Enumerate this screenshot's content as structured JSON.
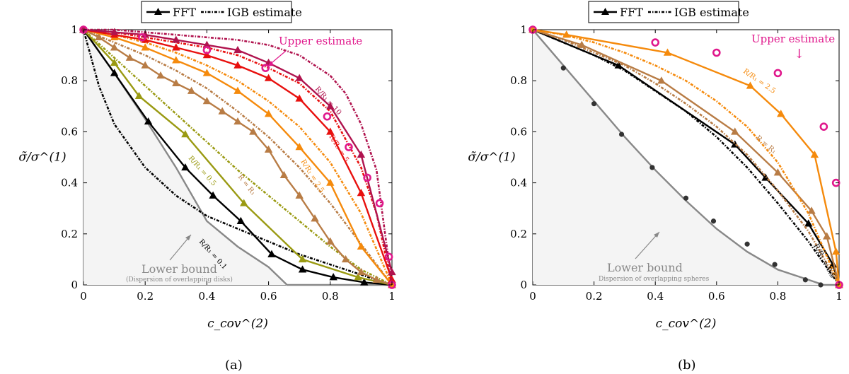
{
  "legend": {
    "fft": "FFT",
    "igb": "IGB estimate"
  },
  "colors": {
    "black": "#000000",
    "gray": "#888888",
    "olive": "#9a9a12",
    "tan": "#b87c45",
    "orange": "#f58a0c",
    "red": "#e8100e",
    "crimson": "#b0134e",
    "magenta": "#e0188c",
    "shade": "#f4f4f4"
  },
  "chart_data": [
    {
      "type": "line",
      "caption": "(a)",
      "xlabel": "c_cov^(2)",
      "ylabel": "σ̃/σ^(1)",
      "xlim": [
        0,
        1
      ],
      "ylim": [
        0,
        1
      ],
      "xticks": [
        0,
        0.2,
        0.4,
        0.6,
        0.8,
        1
      ],
      "yticks": [
        0,
        0.2,
        0.4,
        0.6,
        0.8,
        1
      ],
      "xtick_labels": [
        "0",
        "0.2",
        "0.4",
        "0.6",
        "0.8",
        "1"
      ],
      "ytick_labels": [
        "0",
        "0.2",
        "0.4",
        "0.6",
        "0.8",
        "1"
      ],
      "annotations": {
        "lower_bound": "Lower bound",
        "lower_bound_sub": "(Dispersion of overlapping disks)",
        "upper": "Upper estimate",
        "labels": [
          "R/R₁ = 0.1",
          "R/R₁ = 0.5",
          "R = R₁",
          "R/R₁ = 2.5",
          "R/R₁ = 5",
          "R/R₁ = 10"
        ]
      },
      "lower_bound": {
        "x": [
          0,
          0.1,
          0.2,
          0.3,
          0.4,
          0.5,
          0.6,
          0.66,
          0.8,
          1
        ],
        "y": [
          1,
          0.83,
          0.65,
          0.46,
          0.25,
          0.15,
          0.07,
          0.0,
          0.0,
          0.0
        ]
      },
      "series": [
        {
          "name": "R/R₁ = 0.1",
          "color": "black",
          "fft": {
            "x": [
              0,
              0.1,
              0.21,
              0.33,
              0.42,
              0.51,
              0.61,
              0.71,
              0.81,
              0.91,
              1
            ],
            "y": [
              1,
              0.83,
              0.64,
              0.46,
              0.35,
              0.25,
              0.12,
              0.06,
              0.03,
              0.01,
              0.0
            ]
          },
          "igb": {
            "x": [
              0,
              0.05,
              0.1,
              0.2,
              0.3,
              0.4,
              0.5,
              0.6,
              0.7,
              0.8,
              0.9,
              1
            ],
            "y": [
              1,
              0.78,
              0.63,
              0.46,
              0.35,
              0.27,
              0.22,
              0.17,
              0.12,
              0.08,
              0.04,
              0.0
            ]
          }
        },
        {
          "name": "R/R₁ = 0.5",
          "color": "olive",
          "fft": {
            "x": [
              0,
              0.1,
              0.18,
              0.33,
              0.52,
              0.71,
              0.89,
              1
            ],
            "y": [
              1,
              0.87,
              0.74,
              0.59,
              0.32,
              0.1,
              0.03,
              0.0
            ]
          },
          "igb": {
            "x": [
              0,
              0.1,
              0.2,
              0.3,
              0.4,
              0.5,
              0.6,
              0.7,
              0.8,
              0.9,
              1
            ],
            "y": [
              1,
              0.89,
              0.78,
              0.67,
              0.56,
              0.45,
              0.35,
              0.25,
              0.15,
              0.06,
              0.0
            ]
          }
        },
        {
          "name": "R = R₁",
          "color": "tan",
          "fft": {
            "x": [
              0,
              0.05,
              0.1,
              0.15,
              0.2,
              0.25,
              0.3,
              0.35,
              0.4,
              0.45,
              0.5,
              0.55,
              0.6,
              0.65,
              0.7,
              0.75,
              0.8,
              0.85,
              0.9,
              0.95,
              1
            ],
            "y": [
              1,
              0.97,
              0.93,
              0.89,
              0.86,
              0.82,
              0.79,
              0.76,
              0.72,
              0.68,
              0.64,
              0.6,
              0.53,
              0.43,
              0.35,
              0.26,
              0.17,
              0.1,
              0.05,
              0.02,
              0.0
            ]
          },
          "igb": {
            "x": [
              0,
              0.1,
              0.2,
              0.3,
              0.4,
              0.5,
              0.6,
              0.7,
              0.8,
              0.9,
              1
            ],
            "y": [
              1,
              0.95,
              0.9,
              0.84,
              0.77,
              0.68,
              0.58,
              0.46,
              0.32,
              0.16,
              0.0
            ]
          }
        },
        {
          "name": "R/R₁ = 2.5",
          "color": "orange",
          "fft": {
            "x": [
              0,
              0.1,
              0.2,
              0.3,
              0.4,
              0.5,
              0.6,
              0.7,
              0.8,
              0.9,
              1
            ],
            "y": [
              1,
              0.97,
              0.93,
              0.88,
              0.83,
              0.76,
              0.67,
              0.54,
              0.4,
              0.15,
              0.0
            ]
          },
          "igb": {
            "x": [
              0,
              0.1,
              0.2,
              0.3,
              0.4,
              0.5,
              0.6,
              0.7,
              0.8,
              0.9,
              1
            ],
            "y": [
              1,
              0.98,
              0.95,
              0.91,
              0.86,
              0.8,
              0.72,
              0.62,
              0.48,
              0.28,
              0.0
            ]
          }
        },
        {
          "name": "R/R₁ = 5",
          "color": "red",
          "fft": {
            "x": [
              0,
              0.1,
              0.2,
              0.3,
              0.4,
              0.5,
              0.6,
              0.7,
              0.8,
              0.9,
              1
            ],
            "y": [
              1,
              0.98,
              0.96,
              0.93,
              0.9,
              0.86,
              0.81,
              0.73,
              0.6,
              0.36,
              0.02
            ]
          },
          "igb": {
            "x": [
              0,
              0.1,
              0.2,
              0.3,
              0.4,
              0.5,
              0.6,
              0.7,
              0.8,
              0.9,
              0.95,
              1
            ],
            "y": [
              1,
              0.99,
              0.97,
              0.95,
              0.93,
              0.9,
              0.85,
              0.79,
              0.68,
              0.46,
              0.28,
              0.0
            ]
          }
        },
        {
          "name": "R/R₁ = 10",
          "color": "crimson",
          "fft": {
            "x": [
              0,
              0.1,
              0.2,
              0.3,
              0.4,
              0.5,
              0.6,
              0.7,
              0.8,
              0.9,
              1
            ],
            "y": [
              1,
              0.99,
              0.98,
              0.96,
              0.94,
              0.92,
              0.87,
              0.81,
              0.7,
              0.51,
              0.05
            ]
          },
          "igb": {
            "x": [
              0,
              0.1,
              0.2,
              0.3,
              0.4,
              0.5,
              0.6,
              0.7,
              0.8,
              0.85,
              0.9,
              0.95,
              1
            ],
            "y": [
              1,
              1.0,
              0.99,
              0.98,
              0.97,
              0.96,
              0.94,
              0.9,
              0.82,
              0.75,
              0.63,
              0.45,
              0.0
            ]
          }
        }
      ],
      "upper_estimate": {
        "x": [
          0,
          0.19,
          0.4,
          0.59,
          0.79,
          0.86,
          0.92,
          0.96,
          0.99,
          1
        ],
        "y": [
          1,
          0.97,
          0.92,
          0.85,
          0.66,
          0.54,
          0.42,
          0.32,
          0.11,
          0.0
        ]
      }
    },
    {
      "type": "line",
      "caption": "(b)",
      "xlabel": "c_cov^(2)",
      "ylabel": "σ̃/σ^(1)",
      "xlim": [
        0,
        1
      ],
      "ylim": [
        0,
        1
      ],
      "xticks": [
        0,
        0.2,
        0.4,
        0.6,
        0.8,
        1
      ],
      "yticks": [
        0,
        0.2,
        0.4,
        0.6,
        0.8,
        1
      ],
      "xtick_labels": [
        "0",
        "0.2",
        "0.4",
        "0.6",
        "0.8",
        "1"
      ],
      "ytick_labels": [
        "0",
        "0.2",
        "0.4",
        "0.6",
        "0.8",
        "1"
      ],
      "annotations": {
        "lower_bound": "Lower bound",
        "lower_bound_sub": "Dispersion of overlapping spheres",
        "upper": "Upper estimate",
        "upper_arrow": "↓",
        "labels": [
          "R/R₁ = 0.5",
          "R = R₁",
          "R/R₁ = 2.5"
        ]
      },
      "lower_bound": {
        "x": [
          0,
          0.1,
          0.2,
          0.3,
          0.4,
          0.5,
          0.6,
          0.7,
          0.8,
          0.9,
          0.95,
          1
        ],
        "y": [
          1,
          0.86,
          0.72,
          0.58,
          0.45,
          0.33,
          0.22,
          0.13,
          0.06,
          0.02,
          0.0,
          0.0
        ]
      },
      "lower_markers": {
        "x": [
          0.1,
          0.2,
          0.29,
          0.39,
          0.5,
          0.59,
          0.7,
          0.79,
          0.89,
          0.94
        ],
        "y": [
          0.85,
          0.71,
          0.59,
          0.46,
          0.34,
          0.25,
          0.16,
          0.08,
          0.02,
          0.0
        ]
      },
      "series": [
        {
          "name": "R/R₁ = 0.5",
          "color": "black",
          "fft": {
            "x": [
              0,
              0.28,
              0.66,
              0.76,
              0.9,
              0.98,
              1
            ],
            "y": [
              1,
              0.86,
              0.55,
              0.42,
              0.24,
              0.08,
              0.0
            ]
          },
          "igb": {
            "x": [
              0,
              0.1,
              0.2,
              0.3,
              0.4,
              0.5,
              0.6,
              0.7,
              0.8,
              0.9,
              1
            ],
            "y": [
              1,
              0.95,
              0.9,
              0.84,
              0.76,
              0.68,
              0.58,
              0.46,
              0.32,
              0.17,
              0.0
            ]
          }
        },
        {
          "name": "R = R₁",
          "color": "tan",
          "fft": {
            "x": [
              0,
              0.16,
              0.42,
              0.66,
              0.8,
              0.91,
              0.96,
              1
            ],
            "y": [
              1,
              0.94,
              0.8,
              0.6,
              0.44,
              0.29,
              0.19,
              0.0
            ]
          },
          "igb": {
            "x": [
              0,
              0.1,
              0.2,
              0.3,
              0.4,
              0.5,
              0.6,
              0.7,
              0.8,
              0.9,
              1
            ],
            "y": [
              1,
              0.96,
              0.91,
              0.86,
              0.79,
              0.71,
              0.62,
              0.51,
              0.37,
              0.21,
              0.0
            ]
          }
        },
        {
          "name": "R/R₁ = 2.5",
          "color": "orange",
          "fft": {
            "x": [
              0,
              0.11,
              0.44,
              0.71,
              0.81,
              0.92,
              0.99,
              1
            ],
            "y": [
              1,
              0.98,
              0.91,
              0.78,
              0.67,
              0.51,
              0.13,
              0.0
            ]
          },
          "igb": {
            "x": [
              0,
              0.1,
              0.2,
              0.3,
              0.4,
              0.5,
              0.6,
              0.7,
              0.8,
              0.9,
              1
            ],
            "y": [
              1,
              0.98,
              0.95,
              0.91,
              0.86,
              0.8,
              0.72,
              0.62,
              0.48,
              0.28,
              0.0
            ]
          }
        }
      ],
      "upper_estimate": {
        "x": [
          0,
          0.4,
          0.6,
          0.8,
          0.95,
          0.99,
          1
        ],
        "y": [
          1,
          0.95,
          0.91,
          0.83,
          0.62,
          0.4,
          0.0
        ]
      }
    }
  ]
}
